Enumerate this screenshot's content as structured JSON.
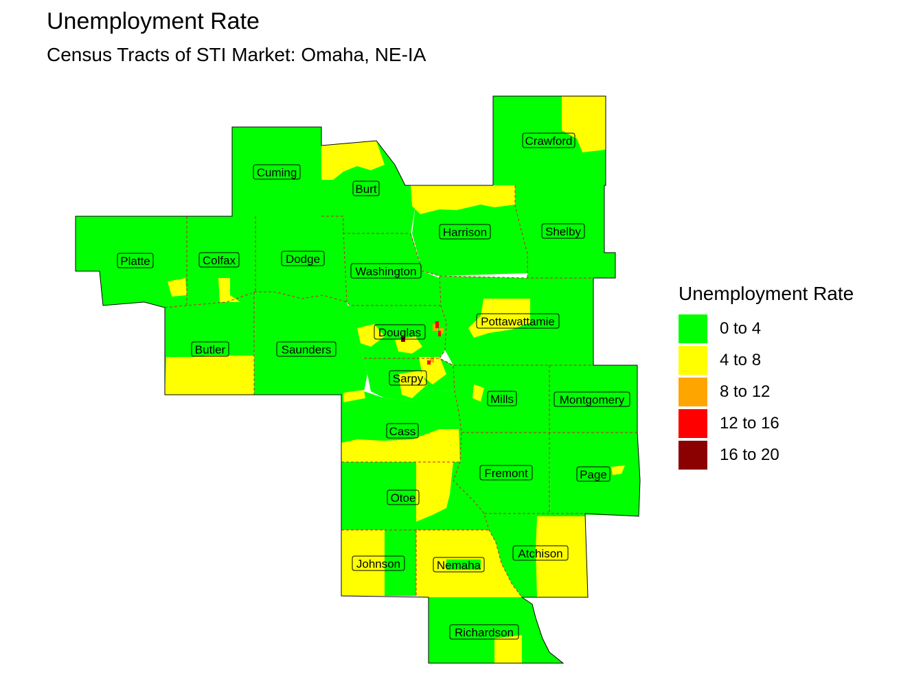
{
  "title": "Unemployment Rate",
  "subtitle": "Census Tracts of STI Market: Omaha, NE-IA",
  "colors": {
    "c0": "#00ff00",
    "c1": "#ffff00",
    "c2": "#ffa500",
    "c3": "#ff0000",
    "c4": "#8b0000",
    "border": "#cc2222"
  },
  "legend": {
    "title": "Unemployment Rate",
    "items": [
      {
        "label": "0 to 4",
        "color": "#00ff00"
      },
      {
        "label": "4 to 8",
        "color": "#ffff00"
      },
      {
        "label": "8 to 12",
        "color": "#ffa500"
      },
      {
        "label": "12 to 16",
        "color": "#ff0000"
      },
      {
        "label": "16 to 20",
        "color": "#8b0000"
      }
    ]
  },
  "counties": [
    "Crawford",
    "Cuming",
    "Burt",
    "Harrison",
    "Shelby",
    "Platte",
    "Colfax",
    "Dodge",
    "Washington",
    "Pottawattamie",
    "Douglas",
    "Butler",
    "Saunders",
    "Sarpy",
    "Mills",
    "Montgomery",
    "Cass",
    "Fremont",
    "Page",
    "Otoe",
    "Atchison",
    "Johnson",
    "Nemaha",
    "Richardson"
  ]
}
